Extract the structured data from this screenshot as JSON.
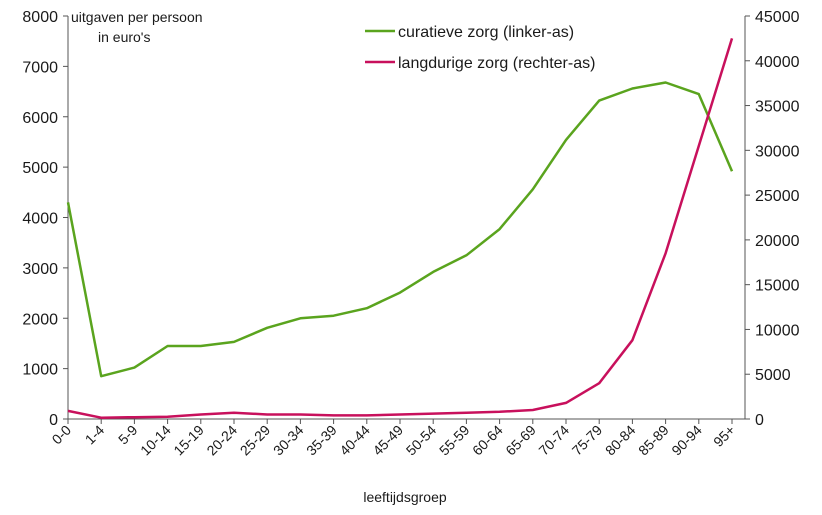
{
  "chart_data": {
    "type": "line",
    "ylabel_left_line1": "uitgaven per persoon",
    "ylabel_left_line2": "in euro's",
    "xlabel": "leeftijdsgroep",
    "categories": [
      "0-0",
      "1-4",
      "5-9",
      "10-14",
      "15-19",
      "20-24",
      "25-29",
      "30-34",
      "35-39",
      "40-44",
      "45-49",
      "50-54",
      "55-59",
      "60-64",
      "65-69",
      "70-74",
      "75-79",
      "80-84",
      "85-89",
      "90-94",
      "95+"
    ],
    "left_axis": {
      "min": 0,
      "max": 8000,
      "step": 1000,
      "ticks": [
        "0",
        "1000",
        "2000",
        "3000",
        "4000",
        "5000",
        "6000",
        "7000",
        "8000"
      ]
    },
    "right_axis": {
      "min": 0,
      "max": 45000,
      "step": 5000,
      "ticks": [
        "0",
        "5000",
        "10000",
        "15000",
        "20000",
        "25000",
        "30000",
        "35000",
        "40000",
        "45000"
      ]
    },
    "grid": false,
    "legend_position": "top-center",
    "series": [
      {
        "name": "curatieve zorg (linker-as)",
        "axis": "left",
        "color": "#5aa41e",
        "values": [
          4300,
          850,
          1020,
          1450,
          1450,
          1530,
          1810,
          2000,
          2050,
          2200,
          2510,
          2920,
          3250,
          3770,
          4560,
          5540,
          6320,
          6560,
          6680,
          6450,
          4920
        ]
      },
      {
        "name": "langdurige zorg (rechter-as)",
        "axis": "right",
        "color": "#c8105c",
        "values": [
          900,
          150,
          200,
          250,
          500,
          700,
          500,
          500,
          400,
          400,
          500,
          600,
          700,
          800,
          1000,
          1800,
          4000,
          8800,
          18500,
          30500,
          42500
        ]
      }
    ]
  }
}
